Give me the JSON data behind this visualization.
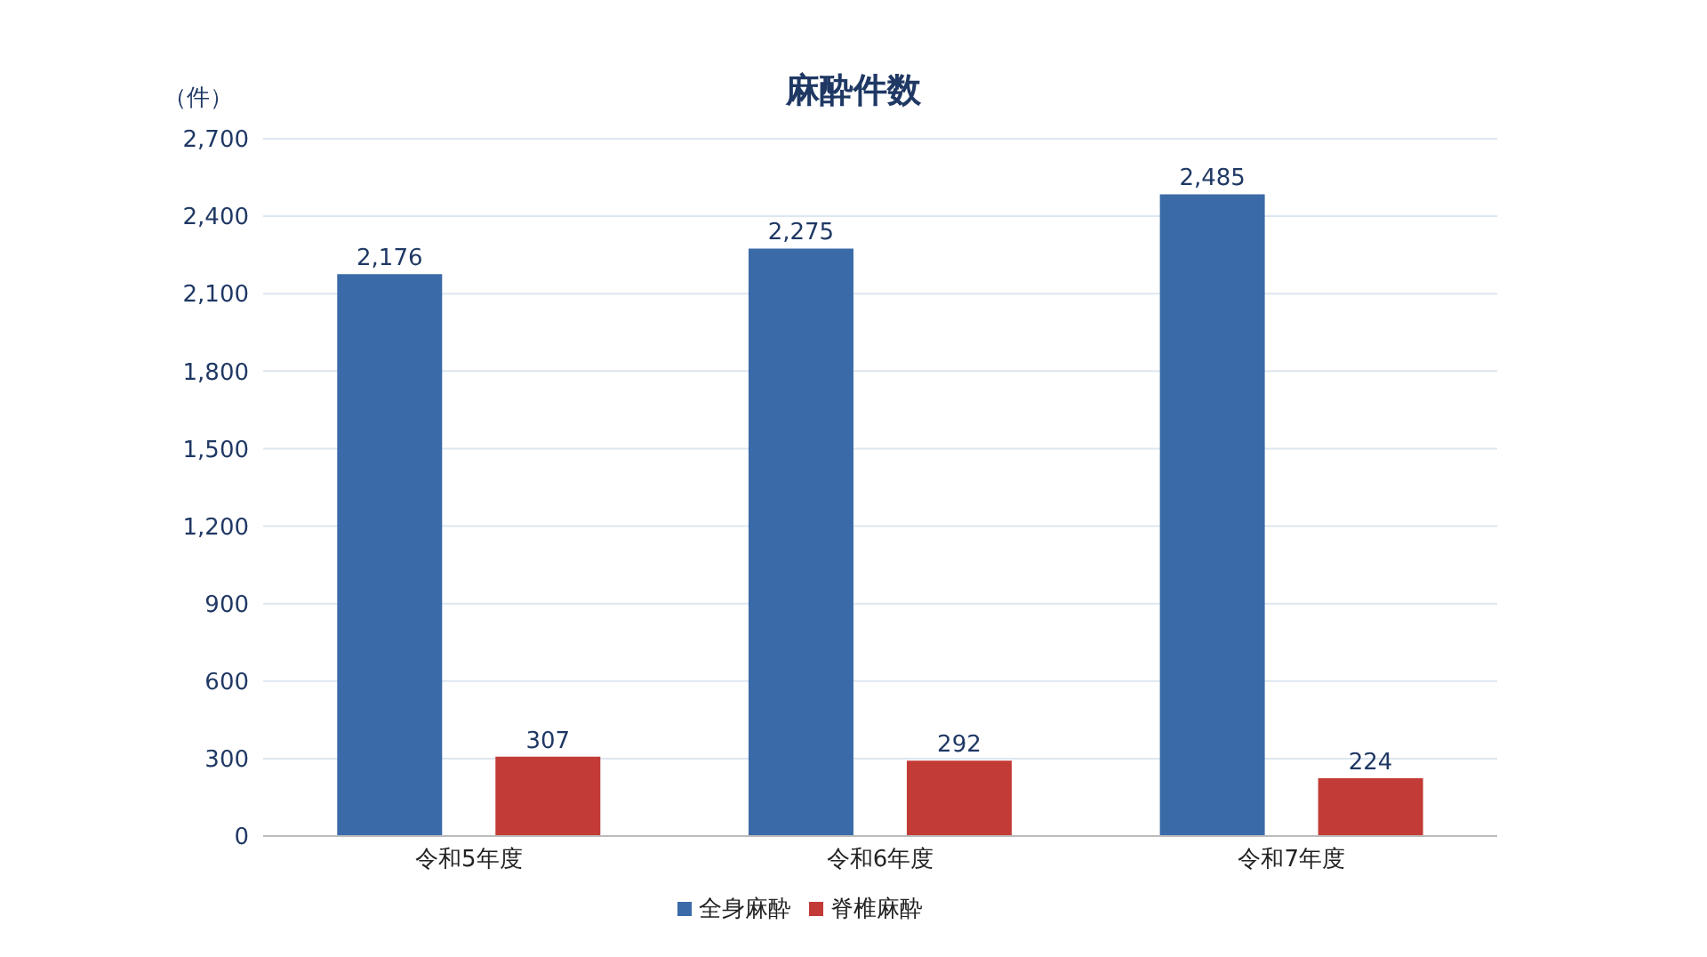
{
  "chart_data": {
    "type": "bar",
    "title": "麻酔件数",
    "ylabel": "（件）",
    "categories": [
      "令和5年度",
      "令和6年度",
      "令和7年度"
    ],
    "series": [
      {
        "name": "全身麻酔",
        "color": "#3a6aa8",
        "values": [
          2176,
          2275,
          2485
        ],
        "value_labels": [
          "2,176",
          "2,275",
          "2,485"
        ]
      },
      {
        "name": "脊椎麻酔",
        "color": "#c23b36",
        "values": [
          307,
          292,
          224
        ],
        "value_labels": [
          "307",
          "292",
          "224"
        ]
      }
    ],
    "ylim": [
      0,
      2700
    ],
    "yticks": [
      0,
      300,
      600,
      900,
      {
        "value": 1200,
        "label": "1,200"
      },
      {
        "value": 1500,
        "label": "1,500"
      },
      {
        "value": 1800,
        "label": "1,800"
      },
      {
        "value": 2100,
        "label": "2,100"
      },
      {
        "value": 2400,
        "label": "2,400"
      },
      {
        "value": 2700,
        "label": "2,700"
      }
    ],
    "grid": "y",
    "legend": "bottom"
  }
}
